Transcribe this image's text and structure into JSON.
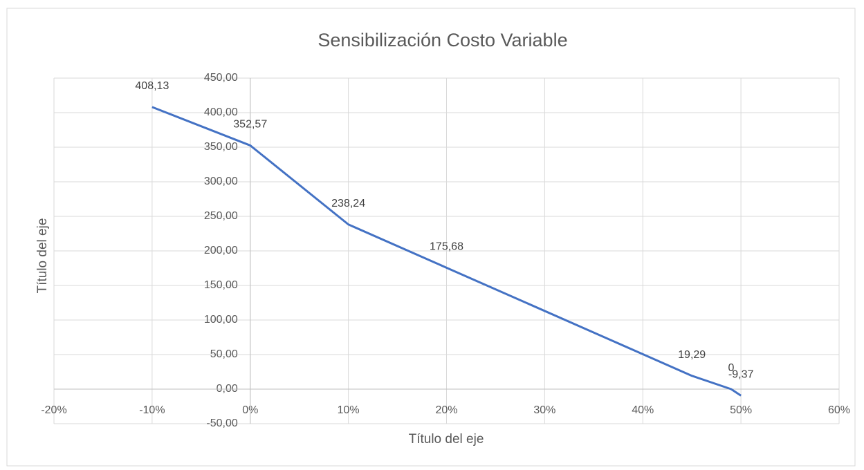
{
  "chart_data": {
    "type": "line",
    "title": "Sensibilización Costo Variable",
    "x_label": "Título del eje",
    "y_label": "Título del eje",
    "x": [
      -10,
      0,
      10,
      20,
      45,
      49,
      50
    ],
    "values": [
      408.13,
      352.57,
      238.24,
      175.68,
      19.29,
      0,
      -9.37
    ],
    "value_labels": [
      "408,13",
      "352,57",
      "238,24",
      "175,68",
      "19,29",
      "0",
      "-9,37"
    ],
    "color": "#4472c4",
    "xlim": [
      -20,
      60
    ],
    "xticks": [
      {
        "value": -20,
        "label": "-20%"
      },
      {
        "value": -10,
        "label": "-10%"
      },
      {
        "value": 0,
        "label": "0%"
      },
      {
        "value": 10,
        "label": "10%"
      },
      {
        "value": 20,
        "label": "20%"
      },
      {
        "value": 30,
        "label": "30%"
      },
      {
        "value": 40,
        "label": "40%"
      },
      {
        "value": 50,
        "label": "50%"
      },
      {
        "value": 60,
        "label": "60%"
      }
    ],
    "ylim": [
      -50,
      450
    ],
    "yticks": [
      {
        "value": -50,
        "label": "-50,00"
      },
      {
        "value": 0,
        "label": "0,00"
      },
      {
        "value": 50,
        "label": "50,00"
      },
      {
        "value": 100,
        "label": "100,00"
      },
      {
        "value": 150,
        "label": "150,00"
      },
      {
        "value": 200,
        "label": "200,00"
      },
      {
        "value": 250,
        "label": "250,00"
      },
      {
        "value": 300,
        "label": "300,00"
      },
      {
        "value": 350,
        "label": "350,00"
      },
      {
        "value": 400,
        "label": "400,00"
      },
      {
        "value": 450,
        "label": "450,00"
      }
    ],
    "grid": true
  }
}
